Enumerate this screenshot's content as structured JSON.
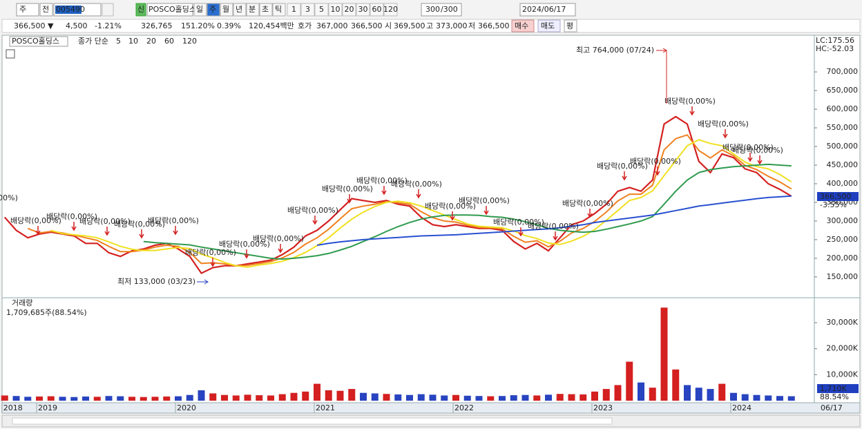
{
  "toolbar": {
    "cycle": "주",
    "prev": "전",
    "code": "005490",
    "new_badge": "신",
    "name": "POSCO홀딩스",
    "periods": [
      "일",
      "주",
      "월",
      "년",
      "분",
      "초",
      "틱"
    ],
    "units": [
      "1",
      "3",
      "5",
      "10",
      "20",
      "30",
      "60",
      "120"
    ],
    "count": "300",
    "count_max": "/300",
    "date": "2024/06/17"
  },
  "quote": {
    "price": "366,500 ▼",
    "change": "4,500",
    "change_pct": "-1.21%",
    "volume": "326,765",
    "volume_ratio": "151.20%",
    "turnover": "0.39%",
    "amount": "120,454백만",
    "ask_label": "호가",
    "ask": "367,000",
    "bid": "366,500",
    "open_label": "시",
    "open": "369,500",
    "high_label": "고",
    "high": "373,000",
    "low_label": "저",
    "low": "366,500",
    "buy": "매수",
    "sell": "매도",
    "eval": "평"
  },
  "chart_data": [
    {
      "type": "line",
      "title": "POSCO홀딩스",
      "subtitle": "종가 단순",
      "categories": [
        "2018",
        null,
        null,
        "2019",
        null,
        null,
        null,
        null,
        null,
        null,
        null,
        null,
        null,
        null,
        null,
        "2020",
        null,
        null,
        null,
        null,
        null,
        null,
        null,
        null,
        null,
        null,
        null,
        "2021",
        null,
        null,
        null,
        null,
        null,
        null,
        null,
        null,
        null,
        null,
        null,
        "2022",
        null,
        null,
        null,
        null,
        null,
        null,
        null,
        null,
        null,
        null,
        null,
        "2023",
        null,
        null,
        null,
        null,
        null,
        null,
        null,
        null,
        null,
        null,
        null,
        "2024",
        null,
        null,
        null,
        null,
        "06/17"
      ],
      "series": [
        {
          "name": "5",
          "color": "#d42020",
          "values": [
            310000,
            275000,
            255000,
            265000,
            270000,
            265000,
            260000,
            240000,
            240000,
            215000,
            205000,
            220000,
            225000,
            235000,
            240000,
            225000,
            205000,
            160000,
            175000,
            180000,
            180000,
            185000,
            190000,
            195000,
            210000,
            230000,
            260000,
            275000,
            300000,
            330000,
            360000,
            355000,
            350000,
            355000,
            345000,
            340000,
            310000,
            290000,
            285000,
            290000,
            285000,
            280000,
            280000,
            275000,
            245000,
            225000,
            240000,
            220000,
            255000,
            290000,
            300000,
            320000,
            345000,
            380000,
            390000,
            380000,
            410000,
            560000,
            580000,
            560000,
            460000,
            430000,
            480000,
            470000,
            440000,
            430000,
            400000,
            385000,
            366500
          ]
        },
        {
          "name": "10",
          "color": "#f08020",
          "values": [
            null,
            null,
            280000,
            268000,
            272000,
            268000,
            262000,
            255000,
            248000,
            232000,
            218000,
            218000,
            222000,
            230000,
            235000,
            232000,
            216000,
            186000,
            188000,
            185000,
            180000,
            181000,
            186000,
            191000,
            201000,
            216000,
            238000,
            255000,
            278000,
            306000,
            333000,
            340000,
            345000,
            352000,
            349000,
            345000,
            325000,
            309000,
            300000,
            297000,
            289000,
            283000,
            282000,
            279000,
            259000,
            243000,
            247000,
            231000,
            246000,
            268000,
            280000,
            299000,
            324000,
            354000,
            372000,
            372000,
            396000,
            491000,
            521000,
            531000,
            489000,
            469000,
            491000,
            475000,
            449000,
            438000,
            420000,
            405000,
            386000
          ]
        },
        {
          "name": "20",
          "color": "#f0e020",
          "values": [
            null,
            null,
            null,
            null,
            275000,
            266000,
            263000,
            260000,
            255000,
            244000,
            232000,
            224000,
            221000,
            221000,
            225000,
            229000,
            226000,
            211000,
            201000,
            189000,
            180000,
            176000,
            182000,
            186000,
            192000,
            202000,
            216000,
            234000,
            255000,
            281000,
            305000,
            324000,
            339000,
            350000,
            353000,
            349000,
            340000,
            328000,
            316000,
            304000,
            292000,
            286000,
            284000,
            282000,
            273000,
            261000,
            253000,
            241000,
            237000,
            246000,
            259000,
            277000,
            302000,
            328000,
            355000,
            363000,
            381000,
            422000,
            462000,
            502000,
            518000,
            508000,
            502000,
            480000,
            458000,
            446000,
            440000,
            425000,
            405000
          ]
        },
        {
          "name": "60",
          "color": "#2e9a4e",
          "values": [
            null,
            null,
            null,
            null,
            null,
            null,
            null,
            null,
            null,
            null,
            null,
            null,
            245000,
            242000,
            240000,
            238000,
            236000,
            230000,
            225000,
            220000,
            215000,
            210000,
            205000,
            200000,
            198000,
            200000,
            203000,
            207000,
            213000,
            222000,
            232000,
            245000,
            258000,
            272000,
            285000,
            296000,
            305000,
            311000,
            315000,
            316000,
            316000,
            315000,
            312000,
            310000,
            305000,
            298000,
            290000,
            280000,
            275000,
            272000,
            270000,
            272000,
            278000,
            285000,
            292000,
            300000,
            312000,
            345000,
            380000,
            410000,
            430000,
            438000,
            442000,
            446000,
            448000,
            450000,
            452000,
            450000,
            448000
          ]
        },
        {
          "name": "120",
          "color": "#2850d0",
          "values": [
            null,
            null,
            null,
            null,
            null,
            null,
            null,
            null,
            null,
            null,
            null,
            null,
            null,
            null,
            null,
            null,
            null,
            null,
            null,
            null,
            null,
            null,
            null,
            null,
            null,
            null,
            null,
            235000,
            240000,
            244000,
            247000,
            250000,
            252000,
            254000,
            256000,
            258000,
            260000,
            261000,
            262000,
            263000,
            265000,
            267000,
            269000,
            271000,
            273000,
            275000,
            277000,
            279000,
            282000,
            286000,
            290000,
            296000,
            300000,
            304000,
            308000,
            312000,
            316000,
            322000,
            328000,
            334000,
            340000,
            344000,
            348000,
            352000,
            356000,
            360000,
            363000,
            365000,
            367000
          ]
        }
      ],
      "ylim": [
        96000,
        791000
      ],
      "yticks": [
        {
          "value": 150000,
          "label": "150,000"
        },
        {
          "value": 200000,
          "label": "200,000"
        },
        {
          "value": 250000,
          "label": "250,000"
        },
        {
          "value": 300000,
          "label": "300,000"
        },
        {
          "value": 350000,
          "label": "350,000"
        },
        {
          "value": 400000,
          "label": "400,000"
        },
        {
          "value": 450000,
          "label": "450,000"
        },
        {
          "value": 500000,
          "label": "500,000"
        },
        {
          "value": 550000,
          "label": "550,000"
        },
        {
          "value": 600000,
          "label": "600,000"
        },
        {
          "value": 650000,
          "label": "650,000"
        },
        {
          "value": 700000,
          "label": "700,000"
        }
      ],
      "annotations": [
        "최고 764,000 (07/24)",
        "최저 133,000 (03/23)"
      ],
      "dividend_labels": [
        "배당락(0,00%)",
        "배당락(0,00%)",
        "배당락(0,00%)",
        "배당락(0,00%)",
        "배당락(0,00%)",
        "배당락(0,00%)",
        "배당락(0,00%)",
        "배당락(0,00%)",
        "배당락(0,00%)",
        "배당락(0,00%)",
        "배당락(0,00%)",
        "배당락(0,00%)",
        "배당락(0,00%)",
        "배당락(0,00%)",
        "배당락(0,00%)",
        "배당락(0,00%)",
        "배당락(0,00%)",
        "배당락(0,00%)",
        "배당락(0,00%)",
        "배당락(0,00%)",
        "배당락(0,00%)",
        "배당락(0,00%)",
        "배당락(0,00%)",
        "배당락(0,00%)"
      ],
      "last_price_label": "366,500",
      "last_change_label": "-3.55%",
      "lc_label": "LC:175.56",
      "hc_label": "HC:-52.03"
    },
    {
      "type": "bar",
      "title": "거래량",
      "subtitle": "1,709,685주(88.54%)",
      "up_color": "#d42020",
      "down_color": "#2844c0",
      "values": [
        2000,
        1800,
        1500,
        1600,
        1700,
        1500,
        1400,
        1600,
        1500,
        1800,
        1700,
        1500,
        1400,
        1500,
        1600,
        1700,
        2200,
        4000,
        2800,
        2200,
        2000,
        2300,
        2100,
        2000,
        2500,
        3000,
        3500,
        6500,
        4000,
        3800,
        4500,
        3000,
        2800,
        2600,
        2400,
        2200,
        2500,
        2300,
        2000,
        2200,
        1900,
        1800,
        1700,
        1800,
        2100,
        2200,
        2000,
        2300,
        2600,
        2500,
        2400,
        3500,
        4500,
        6000,
        15000,
        7000,
        5000,
        35800,
        12000,
        6000,
        5000,
        4500,
        6500,
        3000,
        2500,
        2200,
        2000,
        1800,
        1709.685
      ],
      "ylim": [
        0,
        37200
      ],
      "yticks": [
        {
          "value": 10000,
          "label": "10,000K"
        },
        {
          "value": 20000,
          "label": "20,000K"
        },
        {
          "value": 30000,
          "label": "30,000K"
        }
      ],
      "last_value_label": "1,710K",
      "last_pct_label": "88.54%"
    }
  ]
}
